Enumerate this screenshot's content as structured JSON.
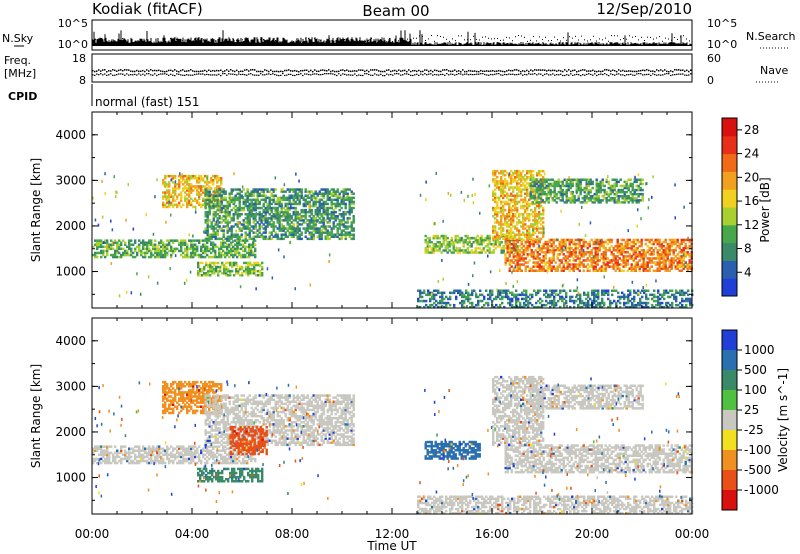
{
  "header": {
    "station": "Kodiak (fitACF)",
    "beam": "Beam 00",
    "date": "12/Sep/2010"
  },
  "scan_panel": {
    "left_label": "N.Sky",
    "left_ticks": [
      "10^5",
      "10^0"
    ],
    "right_label": "N.Search",
    "right_ticks": [
      "10^5",
      "10^0"
    ]
  },
  "freq_panel": {
    "left_label_1": "Freq.",
    "left_label_2": "[MHz]",
    "left_ticks": [
      "18",
      "8"
    ],
    "right_label": "Nave",
    "right_ticks": [
      "60",
      "0"
    ]
  },
  "cpid": {
    "label": "CPID",
    "mode": "normal (fast) 151"
  },
  "colors": {
    "power_scale": [
      "#1f3fd6",
      "#2a5fb0",
      "#3a8a6a",
      "#46a84a",
      "#a8d030",
      "#f0d020",
      "#f2a020",
      "#f06a18",
      "#e83018",
      "#d81010"
    ],
    "velocity_scale": [
      "#1f3fd6",
      "#2a6fb0",
      "#3a8a6a",
      "#50c040",
      "#c8c8c0",
      "#f0e020",
      "#f09020",
      "#e85018",
      "#d81010"
    ]
  },
  "chart_data": [
    {
      "type": "heatmap",
      "title": "Power",
      "xlabel": "",
      "ylabel": "Slant Range [km]",
      "x_ticks": [
        "00:00",
        "04:00",
        "08:00",
        "12:00",
        "16:00",
        "20:00",
        "00:00"
      ],
      "y_ticks": [
        "1000",
        "2000",
        "3000",
        "4000"
      ],
      "ylim": [
        200,
        4500
      ],
      "colorbar_label": "Power [dB]",
      "colorbar_ticks": [
        "4",
        "8",
        "12",
        "16",
        "20",
        "24",
        "28"
      ],
      "colorbar_range": [
        0,
        30
      ],
      "features": [
        {
          "t_start": 0.0,
          "t_end": 6.5,
          "range_start": 1300,
          "range_end": 1700,
          "level": 10
        },
        {
          "t_start": 2.8,
          "t_end": 5.2,
          "range_start": 2400,
          "range_end": 3100,
          "level": 18
        },
        {
          "t_start": 4.5,
          "t_end": 10.5,
          "range_start": 1700,
          "range_end": 2800,
          "level": 8
        },
        {
          "t_start": 4.2,
          "t_end": 6.8,
          "range_start": 900,
          "range_end": 1200,
          "level": 12
        },
        {
          "t_start": 13.0,
          "t_end": 24.0,
          "range_start": 200,
          "range_end": 600,
          "level": 6
        },
        {
          "t_start": 13.3,
          "t_end": 17.0,
          "range_start": 1400,
          "range_end": 1800,
          "level": 12
        },
        {
          "t_start": 16.5,
          "t_end": 24.0,
          "range_start": 1000,
          "range_end": 1700,
          "level": 22
        },
        {
          "t_start": 16.0,
          "t_end": 18.0,
          "range_start": 1700,
          "range_end": 3200,
          "level": 18
        },
        {
          "t_start": 17.5,
          "t_end": 22.0,
          "range_start": 2500,
          "range_end": 3000,
          "level": 9
        }
      ]
    },
    {
      "type": "heatmap",
      "title": "Velocity",
      "xlabel": "Time UT",
      "ylabel": "Slant Range [km]",
      "x_ticks": [
        "00:00",
        "04:00",
        "08:00",
        "12:00",
        "16:00",
        "20:00",
        "00:00"
      ],
      "y_ticks": [
        "1000",
        "2000",
        "3000",
        "4000"
      ],
      "ylim": [
        200,
        4500
      ],
      "colorbar_label": "Velocity [m s^-1]",
      "colorbar_ticks": [
        "1000",
        "500",
        "100",
        "25",
        "-25",
        "-100",
        "-500",
        "-1000"
      ],
      "features": [
        {
          "t_start": 0.0,
          "t_end": 6.5,
          "range_start": 1300,
          "range_end": 1700,
          "velocity": 0
        },
        {
          "t_start": 2.8,
          "t_end": 5.2,
          "range_start": 2400,
          "range_end": 3100,
          "velocity": -400
        },
        {
          "t_start": 4.5,
          "t_end": 10.5,
          "range_start": 1700,
          "range_end": 2800,
          "velocity": 0
        },
        {
          "t_start": 4.2,
          "t_end": 6.8,
          "range_start": 900,
          "range_end": 1200,
          "velocity": 80
        },
        {
          "t_start": 5.5,
          "t_end": 7.0,
          "range_start": 1500,
          "range_end": 2100,
          "velocity": -700
        },
        {
          "t_start": 13.0,
          "t_end": 24.0,
          "range_start": 200,
          "range_end": 600,
          "velocity": 0
        },
        {
          "t_start": 13.3,
          "t_end": 15.5,
          "range_start": 1400,
          "range_end": 1800,
          "velocity": 150
        },
        {
          "t_start": 16.5,
          "t_end": 24.0,
          "range_start": 1100,
          "range_end": 1700,
          "velocity": 0
        },
        {
          "t_start": 16.0,
          "t_end": 18.0,
          "range_start": 1700,
          "range_end": 3200,
          "velocity": 0
        },
        {
          "t_start": 17.5,
          "t_end": 22.0,
          "range_start": 2500,
          "range_end": 3000,
          "velocity": 0
        }
      ]
    }
  ]
}
